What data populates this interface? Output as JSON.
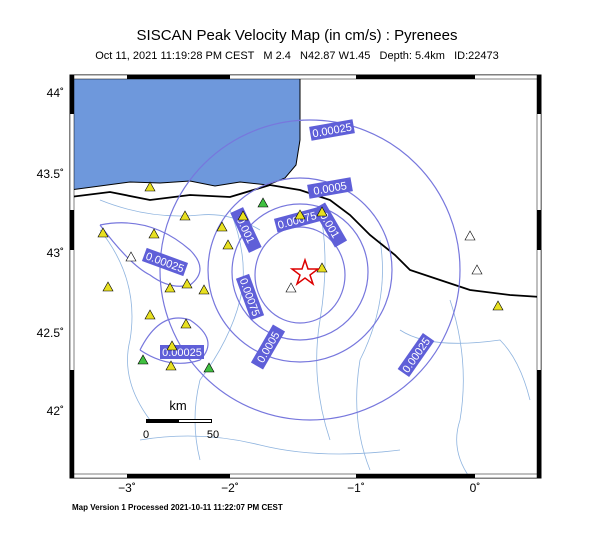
{
  "header": {
    "title": "SISCAN Peak Velocity Map (in cm/s) : Pyrenees",
    "subtitle": "Oct 11, 2021 11:19:28 PM CEST   M 2.4   N42.87 W1.45   Depth: 5.4km   ID:22473"
  },
  "map": {
    "lat_labels": [
      "44˚",
      "43.5˚",
      "43˚",
      "42.5˚",
      "42˚"
    ],
    "lon_labels": [
      "−3˚",
      "−2˚",
      "−1˚",
      "0˚"
    ],
    "contour_labels": [
      "0.00025",
      "0.0005",
      "0.00075",
      "0.001",
      "0.001",
      "0.00075",
      "0.0005",
      "0.00025",
      "0.00025",
      "0.00025"
    ],
    "scale": {
      "unit": "km",
      "start": "0",
      "end": "50"
    }
  },
  "footer": {
    "text": "Map Version 1 Processed 2021-10-11 11:22:07 PM CEST"
  }
}
